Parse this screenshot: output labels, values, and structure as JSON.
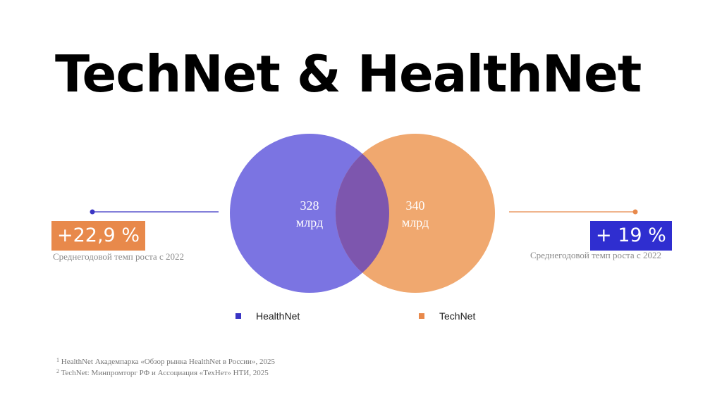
{
  "slide": {
    "title": "TechNet & HealthNet"
  },
  "venn": {
    "healthnet": {
      "value": "328",
      "unit": "млрд",
      "color": "#7b74e2"
    },
    "technet": {
      "value": "340",
      "unit": "млрд",
      "color": "#f0a86f"
    },
    "overlap_color": "#7d56ae"
  },
  "left_stat": {
    "badge": "+22,9 %",
    "caption": "Среднегодовой темп роста с 2022",
    "badge_color": "#e8894b",
    "line_color": "#3a35c4"
  },
  "right_stat": {
    "badge": "+ 19 %",
    "caption": "Среднегодовой темп роста с 2022",
    "badge_color": "#2f2ed0",
    "line_color": "#e8894b"
  },
  "legend": {
    "healthnet": {
      "label": "HealthNet",
      "color": "#3a35c4"
    },
    "technet": {
      "label": "TechNet",
      "color": "#e8894b"
    }
  },
  "footnotes": {
    "first": {
      "marker": "1",
      "text": "HealthNet Академпарка «Обзор рынка HealthNet в России», 2025"
    },
    "second": {
      "marker": "2",
      "text": "TechNet: Минпромторг РФ и Ассоциация «ТехНет» НТИ, 2025"
    }
  }
}
